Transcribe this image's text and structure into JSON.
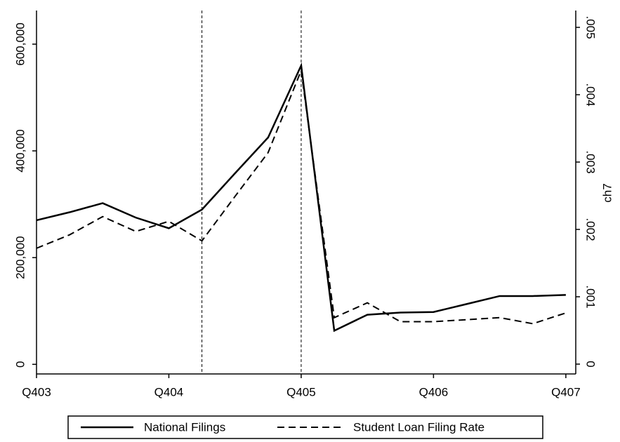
{
  "chart_data": {
    "type": "line",
    "x": [
      0,
      1,
      2,
      3,
      4,
      5,
      6,
      7,
      8,
      9,
      10,
      11,
      12,
      13,
      14,
      15,
      16
    ],
    "xlim": [
      0,
      16.3
    ],
    "xticks": [
      {
        "value": 0,
        "label": "Q403"
      },
      {
        "value": 4,
        "label": "Q404"
      },
      {
        "value": 8,
        "label": "Q405"
      },
      {
        "value": 12,
        "label": "Q406"
      },
      {
        "value": 16,
        "label": "Q407"
      }
    ],
    "ylim": [
      -18000,
      663000
    ],
    "yticks": [
      0,
      {
        "value": 200000,
        "label": "200,000"
      },
      {
        "value": 400000,
        "label": "400,000"
      },
      {
        "value": 600000,
        "label": "600,000"
      }
    ],
    "y2lim": [
      -0.000146,
      0.00525
    ],
    "y2ticks": [
      0,
      {
        "value": 0.001,
        "label": ".001"
      },
      {
        "value": 0.002,
        "label": ".002"
      },
      {
        "value": 0.003,
        "label": ".003"
      },
      {
        "value": 0.004,
        "label": ".004"
      },
      {
        "value": 0.005,
        "label": ".005"
      }
    ],
    "y2_label": "ch7",
    "vlines": [
      5,
      8
    ],
    "series": [
      {
        "name": "National Filings",
        "color": "#000000",
        "line_style": "solid",
        "values": [
          270000,
          285000,
          302000,
          275000,
          255000,
          290000,
          358000,
          425000,
          560000,
          63000,
          93000,
          97000,
          98000,
          113000,
          128000,
          128000,
          130000
        ]
      },
      {
        "name": "Student Loan Filing Rate",
        "color": "#000000",
        "line_style": "dashed",
        "axis": "y2",
        "values": [
          0.00172,
          0.00192,
          0.00219,
          0.00197,
          0.00212,
          0.00183,
          0.00249,
          0.00314,
          0.00436,
          0.00069,
          0.00091,
          0.00063,
          0.00063,
          0.00066,
          0.00069,
          0.0006,
          0.00076
        ]
      }
    ]
  }
}
